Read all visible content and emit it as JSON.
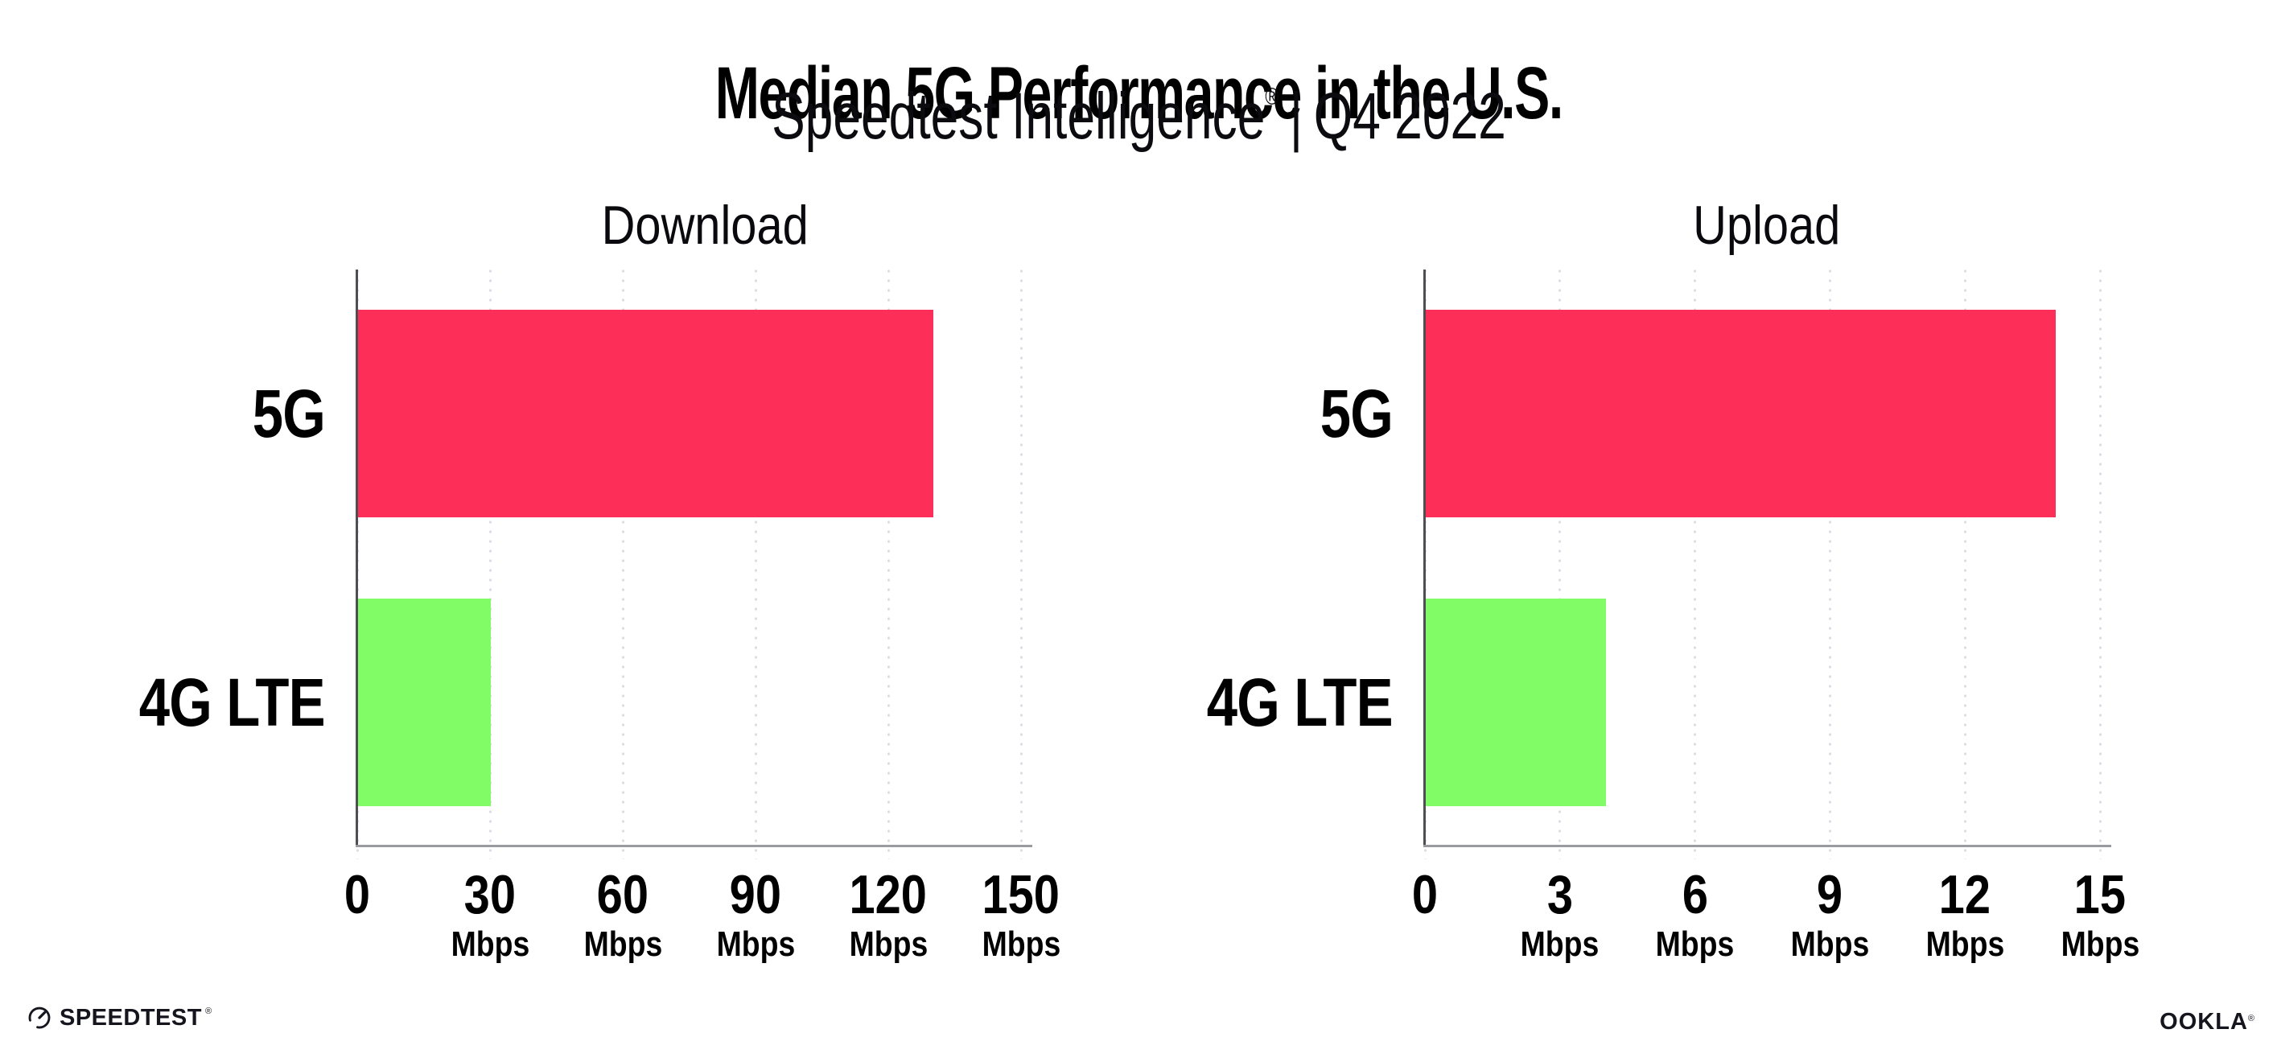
{
  "header": {
    "title": "Median 5G Performance in the U.S.",
    "subtitle": {
      "brand": "Speedtest Intelligence",
      "registered_mark": "®",
      "separator": "|",
      "period": "Q4 2022"
    }
  },
  "chart_data": [
    {
      "type": "bar",
      "orientation": "horizontal",
      "title": "Download",
      "categories": [
        "5G",
        "4G LTE"
      ],
      "values": [
        130,
        30
      ],
      "value_unit": "Mbps",
      "xlim": [
        0,
        150
      ],
      "xticks": [
        0,
        30,
        60,
        90,
        120,
        150
      ],
      "xtick_unit_label": "Mbps",
      "bar_colors": [
        "#fd2e57",
        "#81fb66"
      ],
      "grid": "vertical-dotted",
      "legend": "none"
    },
    {
      "type": "bar",
      "orientation": "horizontal",
      "title": "Upload",
      "categories": [
        "5G",
        "4G LTE"
      ],
      "values": [
        14,
        4
      ],
      "value_unit": "Mbps",
      "xlim": [
        0,
        15
      ],
      "xticks": [
        0,
        3,
        6,
        9,
        12,
        15
      ],
      "xtick_unit_label": "Mbps",
      "bar_colors": [
        "#fd2e57",
        "#81fb66"
      ],
      "grid": "vertical-dotted",
      "legend": "none"
    }
  ],
  "footer": {
    "speedtest_wordmark": "SPEEDTEST",
    "speedtest_registered_mark": "®",
    "ookla_wordmark": "OOKLA",
    "ookla_registered_mark": "®"
  },
  "colors": {
    "background": "#ffffff",
    "bar_5g": "#fd2e57",
    "bar_4g_lte": "#81fb66",
    "gridline": "#dcdce7",
    "x_axis": "#9a9aa1",
    "y_axis": "#4e4e55",
    "text": "#000000"
  }
}
